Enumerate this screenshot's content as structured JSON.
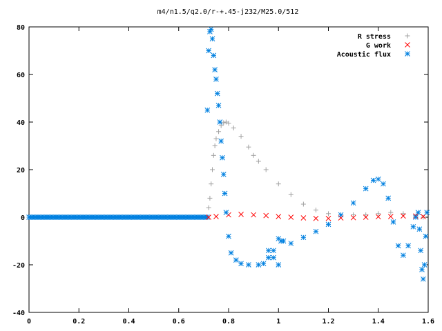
{
  "chart_data": {
    "type": "scatter",
    "title": "m4/n1.5/q2.0/r-+.45-j232/M25.0/512",
    "xlabel": "",
    "ylabel": "",
    "xlim": [
      0,
      1.6
    ],
    "ylim": [
      -40,
      80
    ],
    "x_ticks": [
      "0",
      "0.2",
      "0.4",
      "0.6",
      "0.8",
      "1",
      "1.2",
      "1.4",
      "1.6"
    ],
    "y_ticks": [
      "-40",
      "-20",
      "0",
      "20",
      "40",
      "60",
      "80"
    ],
    "grid": false,
    "legend_position": "top-right",
    "series": [
      {
        "name": "R stress",
        "marker": "+",
        "color": "#a0a0a0",
        "points": [
          [
            0.72,
            4
          ],
          [
            0.725,
            8
          ],
          [
            0.73,
            14
          ],
          [
            0.735,
            20
          ],
          [
            0.74,
            26
          ],
          [
            0.745,
            30
          ],
          [
            0.75,
            33
          ],
          [
            0.76,
            36
          ],
          [
            0.77,
            38.5
          ],
          [
            0.78,
            39.7
          ],
          [
            0.79,
            40
          ],
          [
            0.8,
            39.5
          ],
          [
            0.82,
            37.5
          ],
          [
            0.85,
            34
          ],
          [
            0.88,
            29.5
          ],
          [
            0.9,
            26
          ],
          [
            0.92,
            23.5
          ],
          [
            0.95,
            20
          ],
          [
            1.0,
            14
          ],
          [
            1.05,
            9.5
          ],
          [
            1.1,
            5.5
          ],
          [
            1.15,
            3
          ],
          [
            1.2,
            1.5
          ],
          [
            1.25,
            1
          ],
          [
            1.3,
            1
          ],
          [
            1.35,
            1
          ],
          [
            1.4,
            1.5
          ],
          [
            1.45,
            2
          ],
          [
            1.5,
            1.5
          ],
          [
            1.55,
            0.5
          ],
          [
            1.58,
            0
          ]
        ]
      },
      {
        "name": "G work",
        "marker": "x",
        "color": "#ff0000",
        "points": [
          [
            0.72,
            0
          ],
          [
            0.75,
            0.3
          ],
          [
            0.8,
            1
          ],
          [
            0.85,
            1.2
          ],
          [
            0.9,
            1
          ],
          [
            0.95,
            0.7
          ],
          [
            1.0,
            0.3
          ],
          [
            1.05,
            0
          ],
          [
            1.1,
            -0.3
          ],
          [
            1.15,
            -0.5
          ],
          [
            1.2,
            -0.5
          ],
          [
            1.25,
            -0.3
          ],
          [
            1.3,
            -0.2
          ],
          [
            1.35,
            0
          ],
          [
            1.4,
            0.2
          ],
          [
            1.45,
            0.3
          ],
          [
            1.5,
            0.5
          ],
          [
            1.55,
            0.5
          ],
          [
            1.58,
            0.3
          ]
        ]
      },
      {
        "name": "Acoustic flux",
        "marker": "*",
        "color": "#0080e0",
        "points": [
          [
            0.715,
            45
          ],
          [
            0.72,
            70
          ],
          [
            0.725,
            78
          ],
          [
            0.73,
            79
          ],
          [
            0.735,
            75
          ],
          [
            0.74,
            68
          ],
          [
            0.745,
            62
          ],
          [
            0.75,
            58
          ],
          [
            0.755,
            52
          ],
          [
            0.76,
            47
          ],
          [
            0.765,
            40
          ],
          [
            0.77,
            32
          ],
          [
            0.775,
            25
          ],
          [
            0.78,
            18
          ],
          [
            0.785,
            10
          ],
          [
            0.79,
            2
          ],
          [
            0.8,
            -8
          ],
          [
            0.81,
            -15
          ],
          [
            0.83,
            -18
          ],
          [
            0.85,
            -19.5
          ],
          [
            0.88,
            -20
          ],
          [
            0.92,
            -20
          ],
          [
            0.94,
            -19.5
          ],
          [
            0.96,
            -17
          ],
          [
            0.98,
            -14
          ],
          [
            1.0,
            -9
          ],
          [
            1.01,
            -10
          ],
          [
            1.02,
            -10
          ],
          [
            1.0,
            -20
          ],
          [
            0.98,
            -17
          ],
          [
            0.96,
            -14
          ],
          [
            1.05,
            -11
          ],
          [
            1.1,
            -8.5
          ],
          [
            1.15,
            -6
          ],
          [
            1.2,
            -3
          ],
          [
            1.25,
            1
          ],
          [
            1.3,
            6
          ],
          [
            1.35,
            12
          ],
          [
            1.38,
            15.5
          ],
          [
            1.4,
            16
          ],
          [
            1.42,
            14
          ],
          [
            1.44,
            8
          ],
          [
            1.46,
            -2
          ],
          [
            1.48,
            -12
          ],
          [
            1.5,
            -16
          ],
          [
            1.52,
            -12
          ],
          [
            1.54,
            -4
          ],
          [
            1.55,
            0
          ],
          [
            1.56,
            2
          ],
          [
            1.565,
            -5
          ],
          [
            1.57,
            -14
          ],
          [
            1.575,
            -22
          ],
          [
            1.58,
            -26
          ],
          [
            1.585,
            -20
          ],
          [
            1.59,
            -8
          ],
          [
            1.595,
            2
          ]
        ]
      }
    ]
  }
}
